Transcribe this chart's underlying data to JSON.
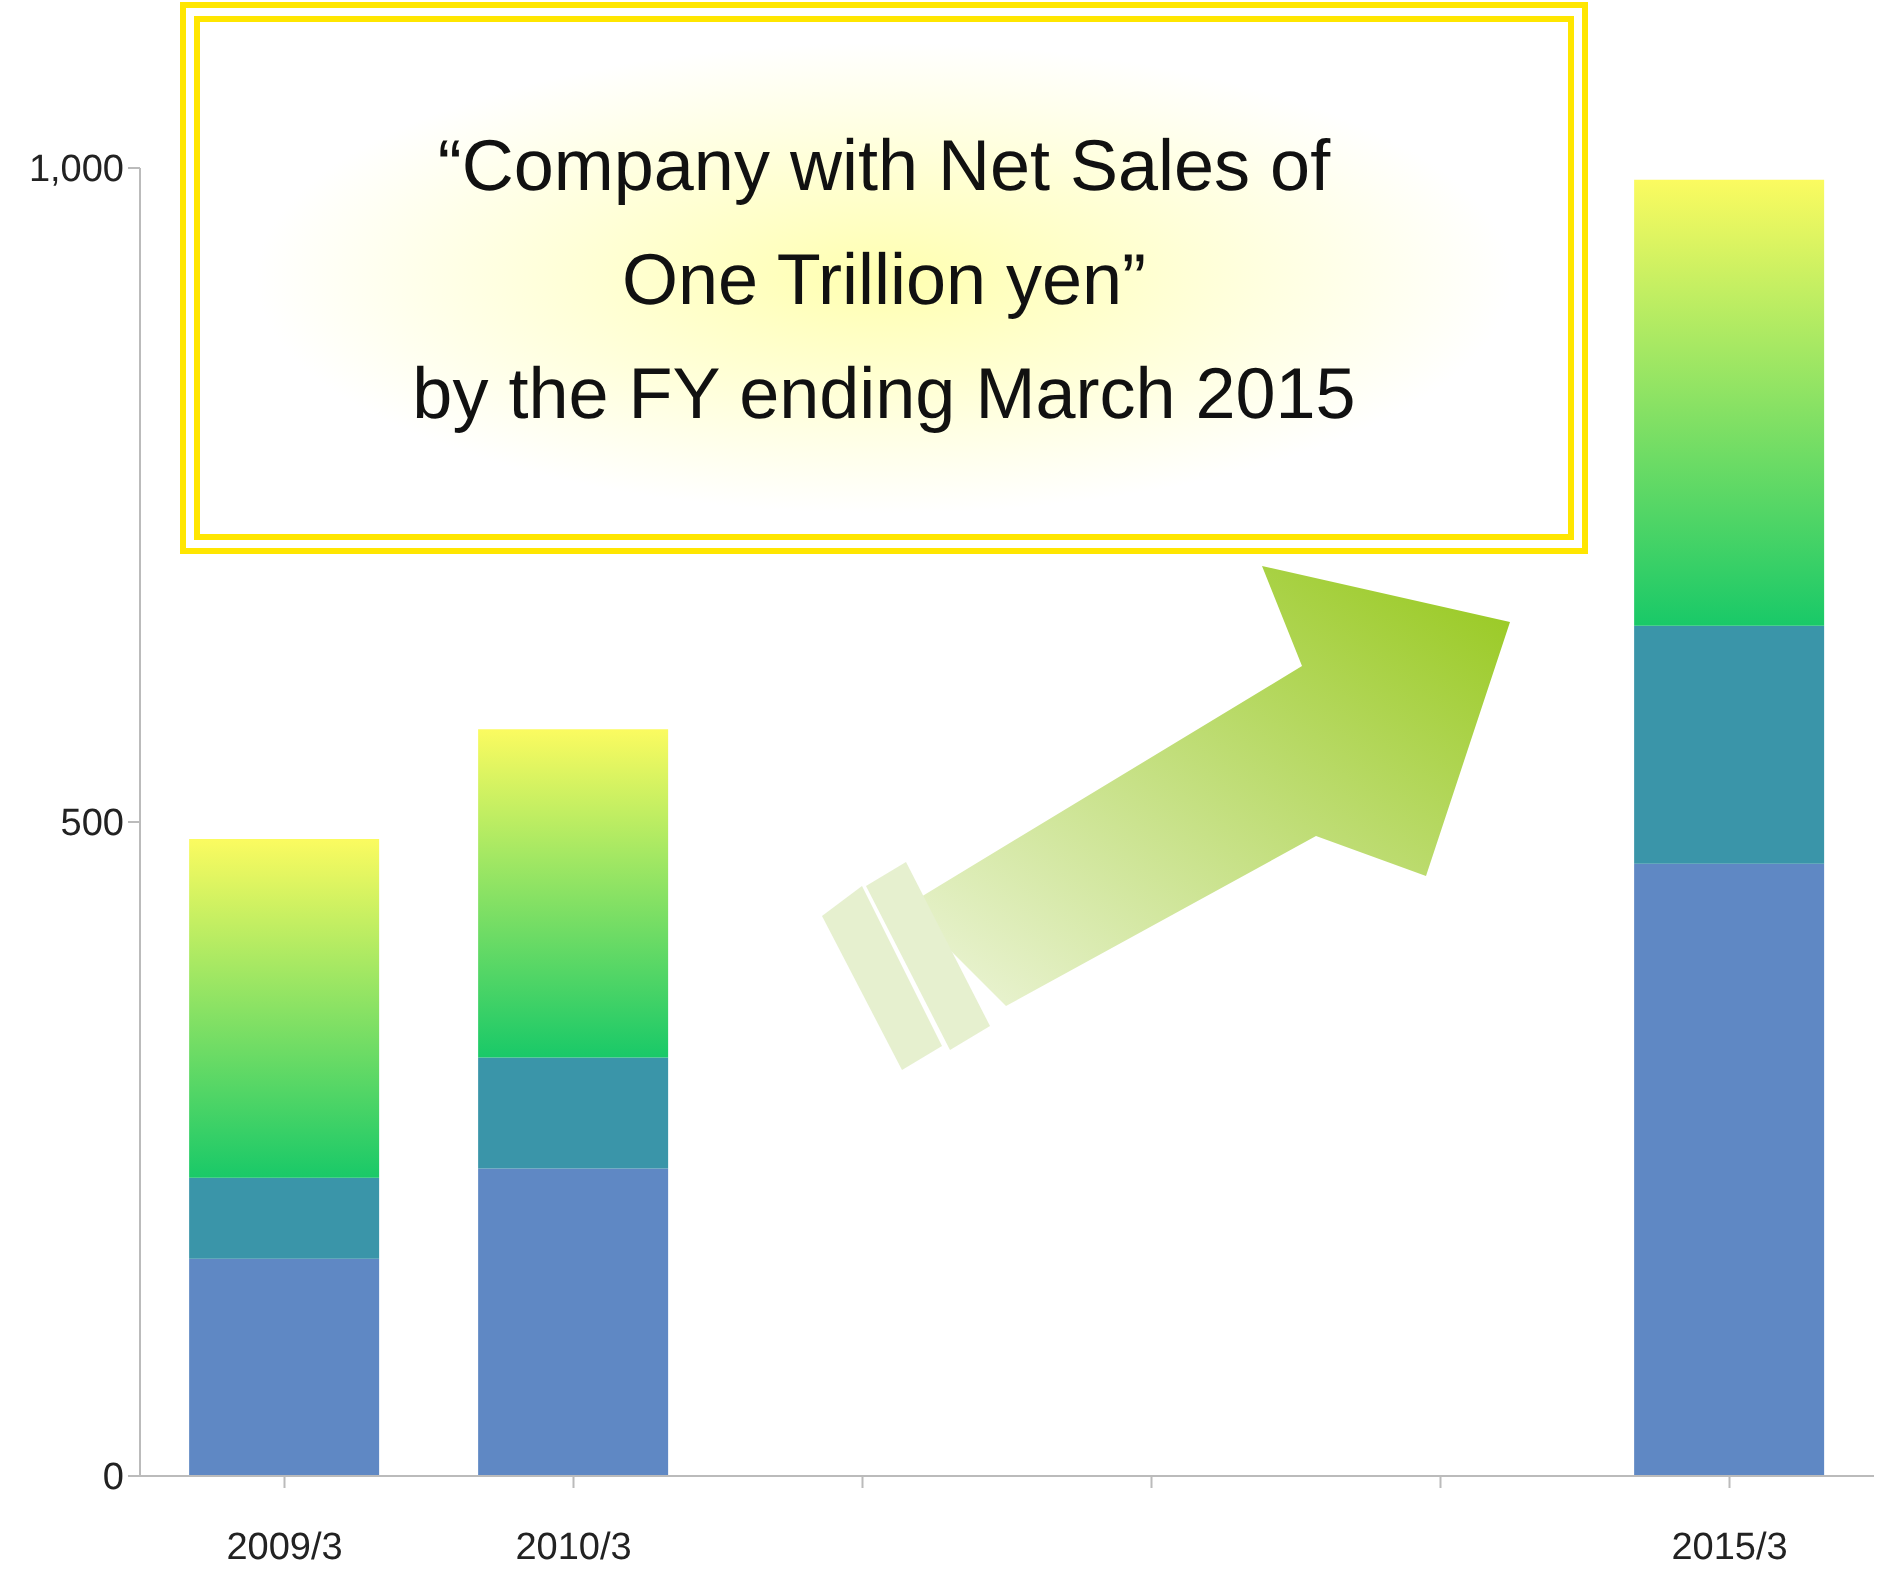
{
  "chart_data": {
    "type": "bar",
    "stacked": true,
    "categories": [
      "2009/3",
      "2010/3",
      null,
      null,
      null,
      "2015/3"
    ],
    "series": [
      {
        "color": "#5f88c4",
        "values": [
          166,
          235,
          null,
          null,
          null,
          468
        ]
      },
      {
        "color": "#3a95a9",
        "values": [
          62,
          85,
          null,
          null,
          null,
          182
        ]
      },
      {
        "color": "#19c968",
        "values": [
          259,
          251,
          null,
          null,
          null,
          341
        ]
      }
    ],
    "ylim": [
      0,
      1000
    ],
    "yticks": [
      0,
      500,
      {
        "value": 1000,
        "label": "1,000"
      }
    ],
    "annotations": [
      "“Company with Net Sales of\nOne Trillion yen”\nby the FY ending March 2015"
    ]
  }
}
